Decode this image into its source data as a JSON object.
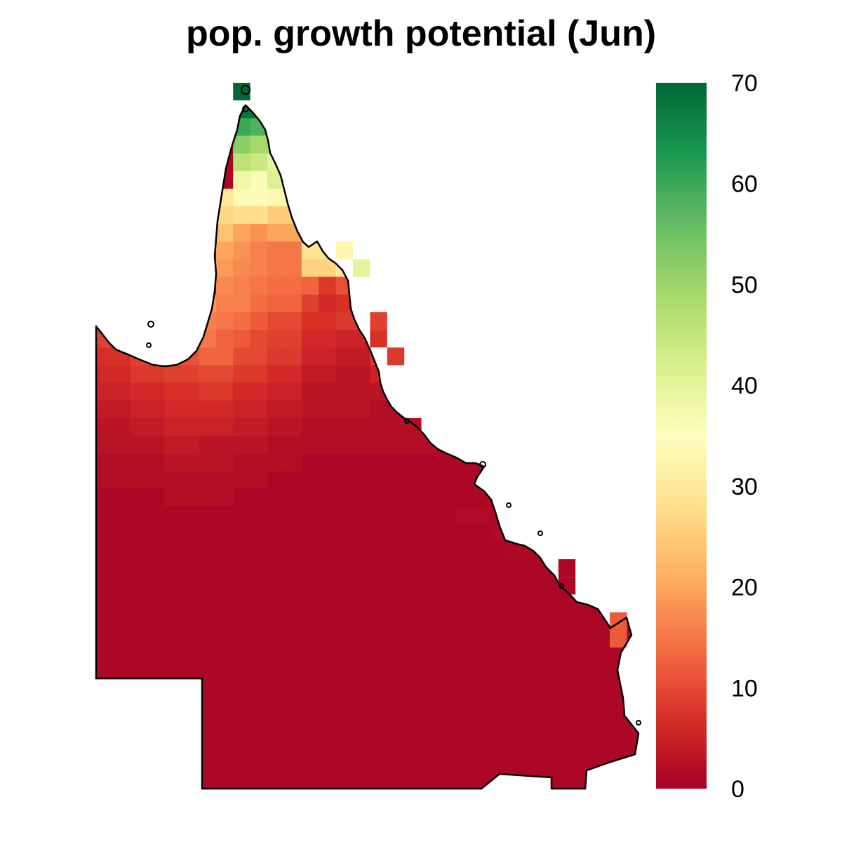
{
  "title": "pop. growth potential (Jun)",
  "legend": {
    "min": 0,
    "max": 70,
    "ticks": [
      0,
      10,
      20,
      30,
      40,
      50,
      60,
      70
    ],
    "colors": [
      "#a50026",
      "#d73027",
      "#f46d43",
      "#fdae61",
      "#fee08b",
      "#ffffbf",
      "#d9ef8b",
      "#a6d96a",
      "#66bd63",
      "#1a9850",
      "#006837"
    ]
  },
  "grid": {
    "cols": 32,
    "rows": 40,
    "blocks": [
      [
        0,
        0,
        31,
        39,
        1
      ],
      [
        8,
        0,
        8,
        0,
        70
      ],
      [
        8,
        1,
        9,
        1,
        68
      ],
      [
        8,
        2,
        9,
        2,
        60
      ],
      [
        9,
        2,
        10,
        2,
        58
      ],
      [
        8,
        3,
        9,
        3,
        52
      ],
      [
        9,
        3,
        10,
        3,
        49
      ],
      [
        8,
        4,
        9,
        4,
        46
      ],
      [
        9,
        4,
        10,
        4,
        44
      ],
      [
        10,
        4,
        11,
        4,
        40
      ],
      [
        8,
        5,
        9,
        5,
        38
      ],
      [
        9,
        5,
        10,
        5,
        36
      ],
      [
        10,
        5,
        11,
        5,
        41
      ],
      [
        7,
        6,
        8,
        6,
        30
      ],
      [
        8,
        6,
        10,
        6,
        34
      ],
      [
        10,
        6,
        11,
        6,
        33
      ],
      [
        7,
        7,
        8,
        7,
        27
      ],
      [
        8,
        7,
        10,
        7,
        28
      ],
      [
        10,
        7,
        11,
        7,
        25
      ],
      [
        7,
        8,
        8,
        8,
        24
      ],
      [
        8,
        8,
        9,
        8,
        20
      ],
      [
        9,
        8,
        10,
        8,
        18
      ],
      [
        10,
        8,
        11,
        8,
        20
      ],
      [
        7,
        9,
        8,
        9,
        20
      ],
      [
        8,
        9,
        9,
        9,
        18
      ],
      [
        9,
        9,
        10,
        9,
        16
      ],
      [
        10,
        9,
        11,
        9,
        15
      ],
      [
        12,
        9,
        13,
        9,
        29
      ],
      [
        14,
        9,
        15,
        9,
        33
      ],
      [
        7,
        10,
        8,
        10,
        19
      ],
      [
        8,
        10,
        9,
        10,
        17
      ],
      [
        9,
        10,
        10,
        10,
        16
      ],
      [
        10,
        10,
        11,
        10,
        15
      ],
      [
        12,
        10,
        13,
        10,
        26
      ],
      [
        14,
        10,
        15,
        10,
        30
      ],
      [
        15,
        10,
        16,
        10,
        40
      ],
      [
        7,
        11,
        8,
        11,
        17
      ],
      [
        8,
        11,
        9,
        11,
        16
      ],
      [
        9,
        11,
        10,
        11,
        15
      ],
      [
        10,
        11,
        11,
        11,
        14
      ],
      [
        12,
        11,
        13,
        11,
        13
      ],
      [
        13,
        11,
        14,
        11,
        8
      ],
      [
        14,
        11,
        15,
        11,
        11
      ],
      [
        6,
        12,
        7,
        12,
        19
      ],
      [
        7,
        12,
        8,
        12,
        16
      ],
      [
        8,
        12,
        9,
        12,
        16
      ],
      [
        9,
        12,
        10,
        12,
        14
      ],
      [
        10,
        12,
        11,
        12,
        13
      ],
      [
        12,
        12,
        13,
        12,
        9
      ],
      [
        13,
        12,
        14,
        12,
        6
      ],
      [
        14,
        12,
        15,
        12,
        7
      ],
      [
        0,
        13,
        1,
        13,
        10
      ],
      [
        6,
        13,
        7,
        13,
        16
      ],
      [
        7,
        13,
        8,
        13,
        15
      ],
      [
        8,
        13,
        9,
        13,
        14
      ],
      [
        9,
        13,
        10,
        13,
        12
      ],
      [
        10,
        13,
        11,
        13,
        10
      ],
      [
        12,
        13,
        13,
        13,
        7
      ],
      [
        14,
        13,
        15,
        13,
        8
      ],
      [
        16,
        13,
        16,
        13,
        9
      ],
      [
        0,
        14,
        1,
        14,
        9
      ],
      [
        6,
        14,
        7,
        14,
        15
      ],
      [
        7,
        14,
        8,
        14,
        13
      ],
      [
        8,
        14,
        9,
        14,
        12
      ],
      [
        9,
        14,
        10,
        14,
        10
      ],
      [
        10,
        14,
        11,
        14,
        9
      ],
      [
        12,
        14,
        13,
        14,
        6
      ],
      [
        14,
        14,
        15,
        14,
        5
      ],
      [
        16,
        14,
        16,
        14,
        7
      ],
      [
        0,
        15,
        1,
        15,
        7
      ],
      [
        2,
        15,
        3,
        15,
        9
      ],
      [
        4,
        15,
        5,
        15,
        11
      ],
      [
        6,
        15,
        7,
        15,
        13
      ],
      [
        8,
        15,
        9,
        15,
        10
      ],
      [
        10,
        15,
        11,
        15,
        8
      ],
      [
        12,
        15,
        13,
        15,
        5
      ],
      [
        14,
        15,
        15,
        15,
        4
      ],
      [
        16,
        15,
        17,
        15,
        8
      ],
      [
        0,
        16,
        1,
        16,
        6
      ],
      [
        2,
        16,
        3,
        16,
        8
      ],
      [
        4,
        16,
        5,
        16,
        9
      ],
      [
        6,
        16,
        7,
        16,
        10
      ],
      [
        8,
        16,
        9,
        16,
        8
      ],
      [
        10,
        16,
        11,
        16,
        6
      ],
      [
        12,
        16,
        13,
        16,
        4
      ],
      [
        14,
        16,
        15,
        16,
        3
      ],
      [
        16,
        16,
        17,
        16,
        5
      ],
      [
        0,
        17,
        1,
        17,
        5
      ],
      [
        2,
        17,
        3,
        17,
        6
      ],
      [
        4,
        17,
        5,
        17,
        7
      ],
      [
        6,
        17,
        7,
        17,
        8
      ],
      [
        8,
        17,
        9,
        17,
        6
      ],
      [
        10,
        17,
        11,
        17,
        5
      ],
      [
        12,
        17,
        13,
        17,
        3
      ],
      [
        14,
        17,
        15,
        17,
        3
      ],
      [
        16,
        17,
        17,
        17,
        3
      ],
      [
        0,
        18,
        1,
        18,
        4
      ],
      [
        2,
        18,
        3,
        18,
        5
      ],
      [
        4,
        18,
        5,
        18,
        6
      ],
      [
        6,
        18,
        7,
        18,
        6
      ],
      [
        8,
        18,
        9,
        18,
        5
      ],
      [
        10,
        18,
        11,
        18,
        4
      ],
      [
        12,
        18,
        13,
        18,
        3
      ],
      [
        14,
        18,
        15,
        18,
        3
      ],
      [
        16,
        18,
        17,
        18,
        2
      ],
      [
        0,
        19,
        1,
        19,
        3
      ],
      [
        2,
        19,
        3,
        19,
        4
      ],
      [
        4,
        19,
        5,
        19,
        5
      ],
      [
        6,
        19,
        7,
        19,
        5
      ],
      [
        8,
        19,
        9,
        19,
        4
      ],
      [
        10,
        19,
        11,
        19,
        3
      ],
      [
        12,
        19,
        13,
        19,
        2
      ],
      [
        14,
        19,
        15,
        19,
        2
      ],
      [
        16,
        19,
        17,
        19,
        2
      ],
      [
        18,
        19,
        19,
        19,
        2
      ],
      [
        0,
        20,
        1,
        20,
        3
      ],
      [
        2,
        20,
        3,
        20,
        3
      ],
      [
        4,
        20,
        5,
        20,
        4
      ],
      [
        6,
        20,
        7,
        20,
        3
      ],
      [
        8,
        20,
        9,
        20,
        3
      ],
      [
        10,
        20,
        11,
        20,
        2
      ],
      [
        12,
        20,
        13,
        20,
        2
      ],
      [
        14,
        20,
        15,
        20,
        2
      ],
      [
        16,
        20,
        17,
        20,
        2
      ],
      [
        18,
        20,
        19,
        20,
        2
      ],
      [
        0,
        21,
        1,
        21,
        2
      ],
      [
        2,
        21,
        3,
        21,
        2
      ],
      [
        4,
        21,
        5,
        21,
        3
      ],
      [
        6,
        21,
        7,
        21,
        3
      ],
      [
        8,
        21,
        9,
        21,
        2
      ],
      [
        10,
        21,
        11,
        21,
        2
      ],
      [
        12,
        21,
        13,
        21,
        1
      ],
      [
        14,
        21,
        15,
        21,
        1
      ],
      [
        16,
        21,
        17,
        21,
        1
      ],
      [
        18,
        21,
        19,
        21,
        1
      ],
      [
        0,
        22,
        1,
        22,
        2
      ],
      [
        2,
        22,
        3,
        22,
        2
      ],
      [
        4,
        22,
        5,
        22,
        2
      ],
      [
        6,
        22,
        7,
        22,
        2
      ],
      [
        8,
        22,
        9,
        22,
        2
      ],
      [
        10,
        22,
        11,
        22,
        1
      ],
      [
        12,
        22,
        13,
        22,
        1
      ],
      [
        14,
        22,
        15,
        22,
        1
      ],
      [
        16,
        22,
        17,
        22,
        1
      ],
      [
        18,
        22,
        19,
        22,
        1
      ],
      [
        0,
        23,
        1,
        23,
        1
      ],
      [
        2,
        23,
        3,
        23,
        1
      ],
      [
        4,
        23,
        5,
        23,
        2
      ],
      [
        6,
        23,
        7,
        23,
        2
      ],
      [
        8,
        23,
        9,
        23,
        1
      ],
      [
        10,
        23,
        11,
        23,
        1
      ],
      [
        21,
        24,
        22,
        24,
        1.5
      ],
      [
        23,
        25,
        24,
        25,
        1.5
      ],
      [
        24,
        26,
        25,
        26,
        1.2
      ]
    ],
    "mask": [
      [
        8,
        1
      ],
      [
        10,
        1
      ],
      [
        11,
        1
      ],
      [
        11,
        2
      ],
      [
        11,
        3
      ],
      [
        12,
        4
      ],
      [
        12,
        5
      ],
      [
        12,
        6
      ],
      [
        12,
        7
      ],
      [
        12,
        8
      ],
      [
        13,
        9
      ],
      [
        16,
        10
      ],
      [
        17,
        10
      ],
      [
        16,
        11
      ],
      [
        17,
        11
      ],
      [
        17,
        12
      ],
      [
        0,
        12
      ],
      [
        1,
        14
      ],
      [
        2,
        14
      ],
      [
        17,
        13
      ],
      [
        18,
        13
      ],
      [
        18,
        14
      ],
      [
        19,
        14
      ]
    ],
    "cutout": [
      [
        0,
        34,
        5,
        39
      ]
    ]
  }
}
